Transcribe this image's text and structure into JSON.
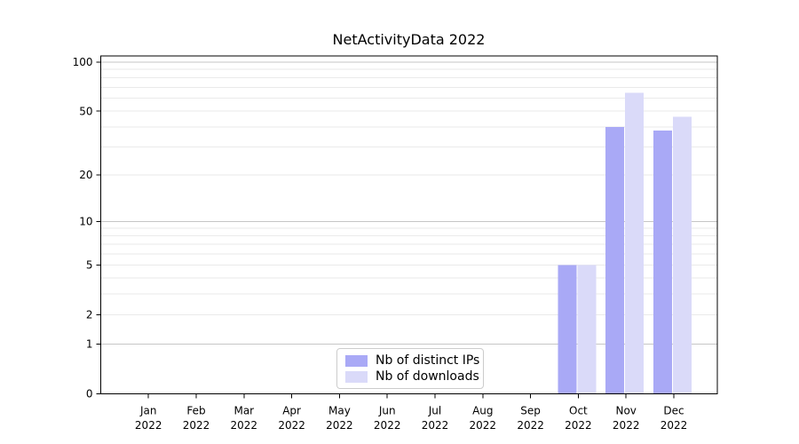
{
  "figure": {
    "background": "#ffffff"
  },
  "chart_data": {
    "type": "bar",
    "title": "NetActivityData 2022",
    "categories": [
      "Jan",
      "Feb",
      "Mar",
      "Apr",
      "May",
      "Jun",
      "Jul",
      "Aug",
      "Sep",
      "Oct",
      "Nov",
      "Dec"
    ],
    "category_sublabel": "2022",
    "series": [
      {
        "name": "Nb of distinct IPs",
        "color": "#a9a9f6",
        "values": [
          0,
          0,
          0,
          0,
          0,
          0,
          0,
          0,
          0,
          5,
          40,
          38
        ]
      },
      {
        "name": "Nb of downloads",
        "color": "#dadaf9",
        "values": [
          0,
          0,
          0,
          0,
          0,
          0,
          0,
          0,
          0,
          5,
          65,
          46
        ]
      }
    ],
    "xlabel": "",
    "ylabel": "",
    "yscale": "log(1+y)",
    "ylim": [
      0,
      109
    ],
    "ytick_labels": [
      "0",
      "1",
      "2",
      "5",
      "10",
      "20",
      "50",
      "100"
    ],
    "grid": {
      "major_values": [
        1,
        10,
        100
      ],
      "minor_values": [
        2,
        3,
        4,
        5,
        6,
        7,
        8,
        9,
        20,
        30,
        40,
        50,
        60,
        70,
        80,
        90
      ],
      "major_color": "#c6c6c6",
      "minor_color": "#eaeaea"
    },
    "legend_position": "lower center",
    "axis_color": "#000000",
    "tick_label_color": "#000000"
  }
}
